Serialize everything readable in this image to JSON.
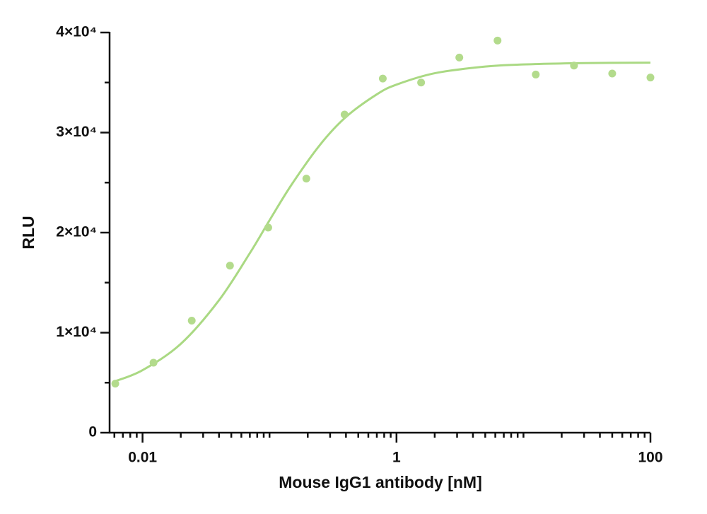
{
  "chart_data": {
    "type": "scatter",
    "xlabel": "Mouse IgG1 antibody [nM]",
    "ylabel": "RLU",
    "xscale": "log",
    "xlim": [
      0.0055,
      100
    ],
    "xticks": [
      0.01,
      1,
      100
    ],
    "xminorticks": [
      0.006,
      0.007,
      0.008,
      0.009,
      0.02,
      0.03,
      0.04,
      0.05,
      0.06,
      0.07,
      0.08,
      0.09,
      0.1,
      0.2,
      0.3,
      0.4,
      0.5,
      0.6,
      0.7,
      0.8,
      0.9,
      2,
      3,
      4,
      5,
      6,
      7,
      8,
      9,
      10,
      20,
      30,
      40,
      50,
      60,
      70,
      80,
      90
    ],
    "ylim": [
      0,
      40000
    ],
    "yticks": [
      0,
      {
        "value": 10000,
        "label": "1×10⁴"
      },
      {
        "value": 20000,
        "label": "2×10⁴"
      },
      {
        "value": 30000,
        "label": "3×10⁴"
      },
      {
        "value": 40000,
        "label": "4×10⁴"
      }
    ],
    "yminorticks": [
      5000,
      15000,
      25000,
      35000
    ],
    "color": "#b3db8c",
    "x": [
      0.0061,
      0.0122,
      0.0244,
      0.0488,
      0.0977,
      0.195,
      0.39,
      0.78,
      1.5625,
      3.125,
      6.25,
      12.5,
      25,
      50,
      100
    ],
    "values": [
      4900,
      7000,
      11200,
      16700,
      20500,
      25400,
      31800,
      35400,
      35000,
      37500,
      39200,
      35800,
      36700,
      35900,
      35500
    ],
    "fit": {
      "color": "#aad983",
      "x": [
        0.0061,
        0.01,
        0.02,
        0.04,
        0.07,
        0.1,
        0.15,
        0.25,
        0.4,
        0.7,
        1,
        2,
        5,
        10,
        30,
        100
      ],
      "values": [
        5150,
        6250,
        8880,
        13240,
        17950,
        21230,
        24840,
        28780,
        31560,
        33820,
        34790,
        35930,
        36600,
        36810,
        36940,
        36990
      ]
    }
  }
}
